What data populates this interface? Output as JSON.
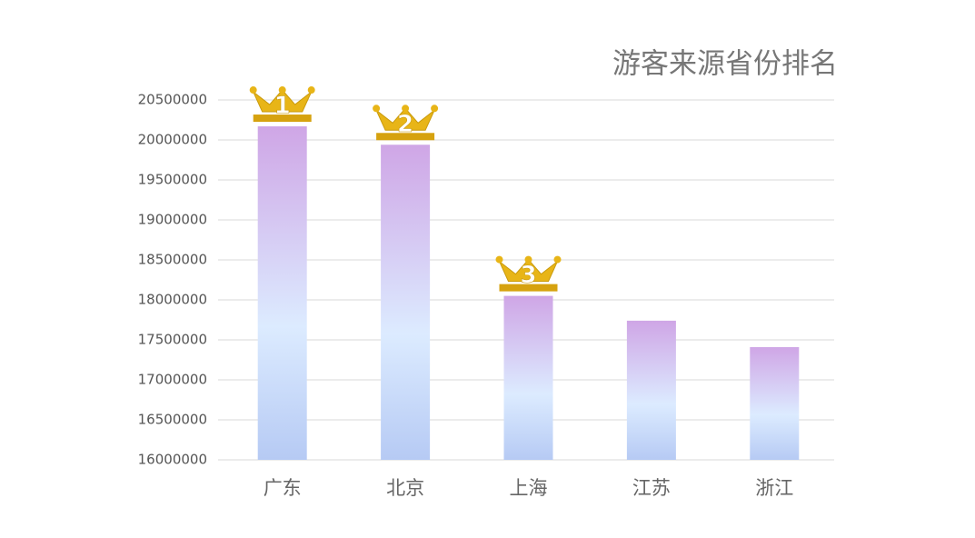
{
  "chart_data": {
    "type": "bar",
    "title": "游客来源省份排名",
    "categories": [
      "广东",
      "北京",
      "上海",
      "江苏",
      "浙江"
    ],
    "values": [
      20170000,
      19940000,
      18050000,
      17740000,
      17410000
    ],
    "gradient": [
      "#cfa6e6",
      "#dcebff",
      "#b6caf4"
    ],
    "ylim": [
      16000000,
      20500000
    ],
    "yticks": [
      16000000,
      16500000,
      17000000,
      17500000,
      18000000,
      18500000,
      19000000,
      19500000,
      20000000,
      20500000
    ],
    "grid": true,
    "annotations": [
      "1",
      "2",
      "3"
    ]
  }
}
